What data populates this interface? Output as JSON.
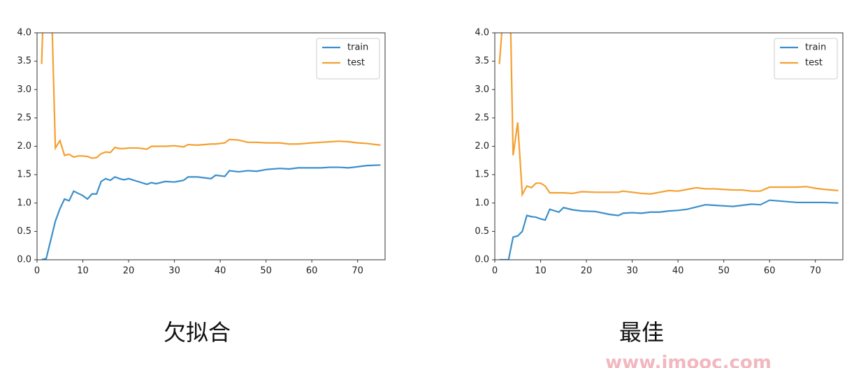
{
  "chart_data": [
    {
      "type": "line",
      "caption": "欠拟合",
      "legend": "upper right",
      "xlim": [
        0,
        76
      ],
      "ylim": [
        0,
        4
      ],
      "xticks": [
        0,
        10,
        20,
        30,
        40,
        50,
        60,
        70
      ],
      "yticks": [
        {
          "value": 0,
          "label": "0.0"
        },
        0.5,
        {
          "value": 1,
          "label": "1.0"
        },
        1.5,
        {
          "value": 2,
          "label": "2.0"
        },
        2.5,
        {
          "value": 3,
          "label": "3.0"
        },
        3.5,
        {
          "value": 4,
          "label": "4.0"
        }
      ],
      "x": [
        1,
        2,
        3,
        4,
        5,
        6,
        7,
        8,
        9,
        10,
        11,
        12,
        13,
        14,
        15,
        16,
        17,
        18,
        19,
        20,
        22,
        24,
        25,
        26,
        28,
        30,
        32,
        33,
        35,
        38,
        39,
        41,
        42,
        44,
        46,
        48,
        50,
        53,
        55,
        57,
        60,
        62,
        64,
        66,
        68,
        70,
        72,
        75
      ],
      "series": [
        {
          "name": "train",
          "color": "#3b8fcc",
          "values": [
            0,
            0.02,
            0.35,
            0.68,
            0.9,
            1.07,
            1.04,
            1.21,
            1.17,
            1.13,
            1.07,
            1.16,
            1.16,
            1.38,
            1.43,
            1.4,
            1.46,
            1.43,
            1.41,
            1.43,
            1.38,
            1.33,
            1.36,
            1.34,
            1.38,
            1.37,
            1.4,
            1.46,
            1.46,
            1.43,
            1.49,
            1.47,
            1.57,
            1.55,
            1.57,
            1.56,
            1.59,
            1.61,
            1.6,
            1.62,
            1.62,
            1.62,
            1.63,
            1.63,
            1.62,
            1.64,
            1.66,
            1.67
          ]
        },
        {
          "name": "test",
          "color": "#f5a030",
          "values": [
            3.45,
            6,
            5,
            1.97,
            2.1,
            1.84,
            1.86,
            1.81,
            1.83,
            1.83,
            1.82,
            1.79,
            1.8,
            1.87,
            1.9,
            1.89,
            1.98,
            1.96,
            1.96,
            1.97,
            1.97,
            1.95,
            2.0,
            2.0,
            2.0,
            2.01,
            1.99,
            2.03,
            2.02,
            2.04,
            2.04,
            2.06,
            2.12,
            2.11,
            2.07,
            2.07,
            2.06,
            2.06,
            2.04,
            2.04,
            2.06,
            2.07,
            2.08,
            2.09,
            2.08,
            2.06,
            2.05,
            2.02
          ]
        }
      ]
    },
    {
      "type": "line",
      "caption": "最佳",
      "legend": "upper right",
      "xlim": [
        0,
        76
      ],
      "ylim": [
        0,
        4
      ],
      "xticks": [
        0,
        10,
        20,
        30,
        40,
        50,
        60,
        70
      ],
      "yticks": [
        {
          "value": 0,
          "label": "0.0"
        },
        0.5,
        {
          "value": 1,
          "label": "1.0"
        },
        1.5,
        {
          "value": 2,
          "label": "2.0"
        },
        2.5,
        {
          "value": 3,
          "label": "3.0"
        },
        3.5,
        {
          "value": 4,
          "label": "4.0"
        }
      ],
      "x": [
        1,
        2,
        3,
        4,
        5,
        6,
        7,
        8,
        9,
        10,
        11,
        12,
        14,
        15,
        17,
        19,
        22,
        25,
        27,
        28,
        30,
        32,
        34,
        36,
        38,
        40,
        42,
        44,
        46,
        48,
        50,
        52,
        54,
        56,
        58,
        60,
        63,
        66,
        68,
        70,
        72,
        75
      ],
      "series": [
        {
          "name": "train",
          "color": "#3b8fcc",
          "values": [
            0,
            0,
            0,
            0.4,
            0.42,
            0.5,
            0.78,
            0.76,
            0.75,
            0.72,
            0.7,
            0.89,
            0.84,
            0.92,
            0.88,
            0.86,
            0.85,
            0.8,
            0.78,
            0.82,
            0.83,
            0.82,
            0.84,
            0.84,
            0.86,
            0.87,
            0.89,
            0.93,
            0.97,
            0.96,
            0.95,
            0.94,
            0.96,
            0.98,
            0.97,
            1.05,
            1.03,
            1.01,
            1.01,
            1.01,
            1.01,
            1.0
          ]
        },
        {
          "name": "test",
          "color": "#f5a030",
          "values": [
            3.45,
            4.5,
            6,
            1.84,
            2.42,
            1.15,
            1.3,
            1.27,
            1.35,
            1.35,
            1.3,
            1.18,
            1.18,
            1.18,
            1.17,
            1.2,
            1.19,
            1.19,
            1.19,
            1.21,
            1.19,
            1.17,
            1.16,
            1.19,
            1.22,
            1.21,
            1.24,
            1.27,
            1.25,
            1.25,
            1.24,
            1.23,
            1.23,
            1.21,
            1.21,
            1.28,
            1.28,
            1.28,
            1.29,
            1.26,
            1.24,
            1.22
          ]
        }
      ]
    }
  ],
  "watermark": "www.imooc.com"
}
